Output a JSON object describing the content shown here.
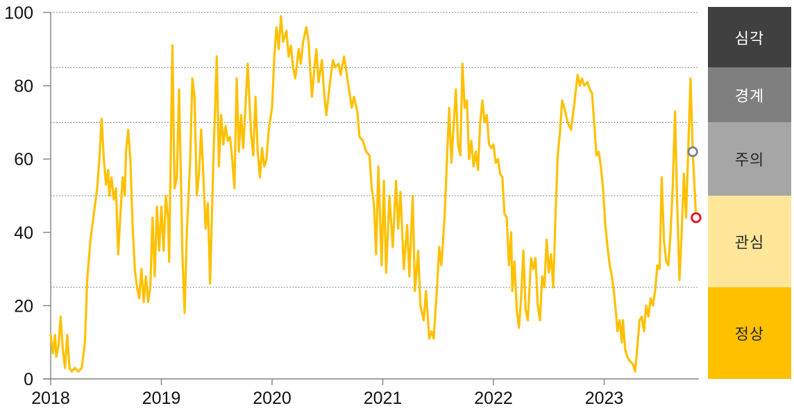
{
  "chart_data": {
    "type": "line",
    "x_axis": {
      "tick_labels": [
        "2018",
        "2019",
        "2020",
        "2021",
        "2022",
        "2023"
      ],
      "tick_values": [
        2018,
        2019,
        2020,
        2021,
        2022,
        2023
      ],
      "range": [
        2018,
        2023.843
      ]
    },
    "y_axis": {
      "tick_labels": [
        "0",
        "20",
        "40",
        "60",
        "80",
        "100"
      ],
      "tick_values": [
        0,
        20,
        40,
        60,
        80,
        100
      ],
      "range": [
        0,
        100
      ]
    },
    "gridlines_y": [
      25,
      50,
      70,
      85,
      100
    ],
    "grid_on": true,
    "legend_position": "right",
    "colors": {
      "line": "#FFC000",
      "axis": "#808080",
      "gridline": "#595959",
      "marker_gray": "#7f7f7f",
      "marker_red": "#e20f1b"
    },
    "bands": [
      {
        "label": "심각",
        "min": 85,
        "max": 100,
        "color": "#404040",
        "text_color": "#ffffff"
      },
      {
        "label": "경계",
        "min": 70,
        "max": 85,
        "color": "#7f7f7f",
        "text_color": "#ffffff"
      },
      {
        "label": "주의",
        "min": 50,
        "max": 70,
        "color": "#a6a6a6",
        "text_color": "#262626"
      },
      {
        "label": "관심",
        "min": 25,
        "max": 50,
        "color": "#ffe699",
        "text_color": "#262626"
      },
      {
        "label": "정상",
        "min": 0,
        "max": 25,
        "color": "#ffc000",
        "text_color": "#262626"
      }
    ],
    "markers": [
      {
        "name": "marker-gray-circle",
        "x": 2023.8,
        "y": 62,
        "color": "#7f7f7f"
      },
      {
        "name": "marker-red-circle",
        "x": 2023.83,
        "y": 44,
        "color": "#e20f1b"
      }
    ],
    "series": [
      {
        "name": "index",
        "color": "#FFC000",
        "points": [
          [
            2018.0,
            12
          ],
          [
            2018.02,
            7
          ],
          [
            2018.04,
            12
          ],
          [
            2018.05,
            6
          ],
          [
            2018.07,
            9
          ],
          [
            2018.09,
            17
          ],
          [
            2018.11,
            8
          ],
          [
            2018.13,
            3
          ],
          [
            2018.15,
            12
          ],
          [
            2018.17,
            3
          ],
          [
            2018.19,
            2
          ],
          [
            2018.22,
            3
          ],
          [
            2018.25,
            2
          ],
          [
            2018.28,
            3
          ],
          [
            2018.31,
            10
          ],
          [
            2018.33,
            27
          ],
          [
            2018.36,
            38
          ],
          [
            2018.39,
            45
          ],
          [
            2018.42,
            52
          ],
          [
            2018.44,
            60
          ],
          [
            2018.46,
            71
          ],
          [
            2018.48,
            60
          ],
          [
            2018.5,
            53
          ],
          [
            2018.52,
            57
          ],
          [
            2018.53,
            50
          ],
          [
            2018.55,
            55
          ],
          [
            2018.57,
            49
          ],
          [
            2018.59,
            52
          ],
          [
            2018.61,
            34
          ],
          [
            2018.63,
            45
          ],
          [
            2018.65,
            55
          ],
          [
            2018.67,
            50
          ],
          [
            2018.68,
            62
          ],
          [
            2018.7,
            68
          ],
          [
            2018.72,
            60
          ],
          [
            2018.74,
            42
          ],
          [
            2018.76,
            30
          ],
          [
            2018.78,
            25
          ],
          [
            2018.8,
            22
          ],
          [
            2018.82,
            30
          ],
          [
            2018.84,
            21
          ],
          [
            2018.86,
            28
          ],
          [
            2018.88,
            21
          ],
          [
            2018.9,
            25
          ],
          [
            2018.92,
            44
          ],
          [
            2018.94,
            28
          ],
          [
            2018.96,
            47
          ],
          [
            2018.98,
            35
          ],
          [
            2019.0,
            47
          ],
          [
            2019.02,
            35
          ],
          [
            2019.04,
            50
          ],
          [
            2019.06,
            44
          ],
          [
            2019.07,
            32
          ],
          [
            2019.1,
            91
          ],
          [
            2019.12,
            52
          ],
          [
            2019.14,
            55
          ],
          [
            2019.16,
            79
          ],
          [
            2019.18,
            50
          ],
          [
            2019.19,
            34
          ],
          [
            2019.21,
            18
          ],
          [
            2019.23,
            40
          ],
          [
            2019.26,
            60
          ],
          [
            2019.28,
            82
          ],
          [
            2019.3,
            77
          ],
          [
            2019.32,
            50
          ],
          [
            2019.34,
            56
          ],
          [
            2019.36,
            68
          ],
          [
            2019.38,
            55
          ],
          [
            2019.4,
            41
          ],
          [
            2019.42,
            48
          ],
          [
            2019.44,
            26
          ],
          [
            2019.47,
            60
          ],
          [
            2019.5,
            88
          ],
          [
            2019.52,
            58
          ],
          [
            2019.54,
            72
          ],
          [
            2019.56,
            64
          ],
          [
            2019.58,
            69
          ],
          [
            2019.6,
            65
          ],
          [
            2019.62,
            66
          ],
          [
            2019.64,
            60
          ],
          [
            2019.66,
            52
          ],
          [
            2019.68,
            82
          ],
          [
            2019.7,
            62
          ],
          [
            2019.72,
            72
          ],
          [
            2019.74,
            63
          ],
          [
            2019.78,
            86
          ],
          [
            2019.81,
            67
          ],
          [
            2019.83,
            61
          ],
          [
            2019.85,
            77
          ],
          [
            2019.87,
            62
          ],
          [
            2019.89,
            55
          ],
          [
            2019.91,
            63
          ],
          [
            2019.93,
            58
          ],
          [
            2019.95,
            60
          ],
          [
            2019.97,
            68
          ],
          [
            2020.0,
            74
          ],
          [
            2020.02,
            88
          ],
          [
            2020.04,
            96
          ],
          [
            2020.06,
            90
          ],
          [
            2020.08,
            99
          ],
          [
            2020.1,
            92
          ],
          [
            2020.13,
            95
          ],
          [
            2020.15,
            88
          ],
          [
            2020.17,
            91
          ],
          [
            2020.19,
            85
          ],
          [
            2020.21,
            82
          ],
          [
            2020.24,
            90
          ],
          [
            2020.26,
            86
          ],
          [
            2020.28,
            92
          ],
          [
            2020.31,
            96
          ],
          [
            2020.33,
            92
          ],
          [
            2020.36,
            77
          ],
          [
            2020.38,
            84
          ],
          [
            2020.4,
            90
          ],
          [
            2020.42,
            81
          ],
          [
            2020.45,
            87
          ],
          [
            2020.47,
            78
          ],
          [
            2020.49,
            72
          ],
          [
            2020.52,
            80
          ],
          [
            2020.55,
            87
          ],
          [
            2020.57,
            85
          ],
          [
            2020.6,
            86
          ],
          [
            2020.62,
            83
          ],
          [
            2020.65,
            88
          ],
          [
            2020.68,
            82
          ],
          [
            2020.7,
            78
          ],
          [
            2020.72,
            74
          ],
          [
            2020.74,
            77
          ],
          [
            2020.77,
            73
          ],
          [
            2020.79,
            66
          ],
          [
            2020.82,
            65
          ],
          [
            2020.85,
            62
          ],
          [
            2020.88,
            61
          ],
          [
            2020.9,
            52
          ],
          [
            2020.92,
            48
          ],
          [
            2020.94,
            34
          ],
          [
            2020.96,
            58
          ],
          [
            2020.99,
            31
          ],
          [
            2021.01,
            54
          ],
          [
            2021.03,
            29
          ],
          [
            2021.06,
            50
          ],
          [
            2021.09,
            36
          ],
          [
            2021.12,
            54
          ],
          [
            2021.14,
            41
          ],
          [
            2021.16,
            51
          ],
          [
            2021.19,
            30
          ],
          [
            2021.22,
            42
          ],
          [
            2021.24,
            28
          ],
          [
            2021.27,
            50
          ],
          [
            2021.29,
            24
          ],
          [
            2021.32,
            35
          ],
          [
            2021.34,
            20
          ],
          [
            2021.37,
            16
          ],
          [
            2021.39,
            24
          ],
          [
            2021.42,
            11
          ],
          [
            2021.44,
            13
          ],
          [
            2021.46,
            11
          ],
          [
            2021.49,
            25
          ],
          [
            2021.51,
            36
          ],
          [
            2021.53,
            31
          ],
          [
            2021.56,
            45
          ],
          [
            2021.58,
            60
          ],
          [
            2021.6,
            74
          ],
          [
            2021.62,
            59
          ],
          [
            2021.64,
            69
          ],
          [
            2021.66,
            79
          ],
          [
            2021.68,
            64
          ],
          [
            2021.7,
            61
          ],
          [
            2021.72,
            86
          ],
          [
            2021.74,
            74
          ],
          [
            2021.76,
            76
          ],
          [
            2021.78,
            60
          ],
          [
            2021.8,
            65
          ],
          [
            2021.82,
            58
          ],
          [
            2021.84,
            62
          ],
          [
            2021.86,
            57
          ],
          [
            2021.88,
            70
          ],
          [
            2021.9,
            76
          ],
          [
            2021.92,
            70
          ],
          [
            2021.94,
            72
          ],
          [
            2021.96,
            64
          ],
          [
            2021.98,
            63
          ],
          [
            2022.0,
            64
          ],
          [
            2022.02,
            59
          ],
          [
            2022.04,
            60
          ],
          [
            2022.06,
            56
          ],
          [
            2022.08,
            55
          ],
          [
            2022.1,
            45
          ],
          [
            2022.12,
            44
          ],
          [
            2022.14,
            31
          ],
          [
            2022.16,
            40
          ],
          [
            2022.17,
            24
          ],
          [
            2022.19,
            32
          ],
          [
            2022.21,
            19
          ],
          [
            2022.23,
            14
          ],
          [
            2022.25,
            22
          ],
          [
            2022.27,
            35
          ],
          [
            2022.29,
            19
          ],
          [
            2022.31,
            16
          ],
          [
            2022.34,
            33
          ],
          [
            2022.36,
            30
          ],
          [
            2022.38,
            33
          ],
          [
            2022.4,
            20
          ],
          [
            2022.42,
            16
          ],
          [
            2022.44,
            28
          ],
          [
            2022.46,
            25
          ],
          [
            2022.48,
            38
          ],
          [
            2022.5,
            29
          ],
          [
            2022.52,
            34
          ],
          [
            2022.54,
            25
          ],
          [
            2022.56,
            44
          ],
          [
            2022.58,
            61
          ],
          [
            2022.6,
            67
          ],
          [
            2022.62,
            76
          ],
          [
            2022.64,
            74
          ],
          [
            2022.67,
            70
          ],
          [
            2022.7,
            68
          ],
          [
            2022.73,
            75
          ],
          [
            2022.76,
            83
          ],
          [
            2022.78,
            80
          ],
          [
            2022.8,
            82
          ],
          [
            2022.82,
            80
          ],
          [
            2022.85,
            81
          ],
          [
            2022.87,
            79
          ],
          [
            2022.89,
            78
          ],
          [
            2022.91,
            70
          ],
          [
            2022.93,
            61
          ],
          [
            2022.95,
            62
          ],
          [
            2022.97,
            58
          ],
          [
            2022.99,
            52
          ],
          [
            2023.01,
            42
          ],
          [
            2023.03,
            36
          ],
          [
            2023.05,
            31
          ],
          [
            2023.07,
            28
          ],
          [
            2023.09,
            23
          ],
          [
            2023.11,
            17
          ],
          [
            2023.12,
            13
          ],
          [
            2023.14,
            16
          ],
          [
            2023.16,
            10
          ],
          [
            2023.17,
            16
          ],
          [
            2023.19,
            8
          ],
          [
            2023.21,
            6
          ],
          [
            2023.23,
            5
          ],
          [
            2023.26,
            4
          ],
          [
            2023.28,
            2
          ],
          [
            2023.3,
            9
          ],
          [
            2023.32,
            16
          ],
          [
            2023.34,
            17
          ],
          [
            2023.36,
            13
          ],
          [
            2023.38,
            20
          ],
          [
            2023.4,
            17
          ],
          [
            2023.42,
            22
          ],
          [
            2023.44,
            20
          ],
          [
            2023.46,
            24
          ],
          [
            2023.48,
            31
          ],
          [
            2023.5,
            30
          ],
          [
            2023.52,
            55
          ],
          [
            2023.54,
            38
          ],
          [
            2023.56,
            32
          ],
          [
            2023.58,
            31
          ],
          [
            2023.6,
            40
          ],
          [
            2023.62,
            53
          ],
          [
            2023.64,
            73
          ],
          [
            2023.66,
            47
          ],
          [
            2023.68,
            27
          ],
          [
            2023.7,
            40
          ],
          [
            2023.72,
            56
          ],
          [
            2023.74,
            44
          ],
          [
            2023.78,
            82
          ],
          [
            2023.8,
            62
          ],
          [
            2023.83,
            44
          ]
        ]
      }
    ]
  }
}
